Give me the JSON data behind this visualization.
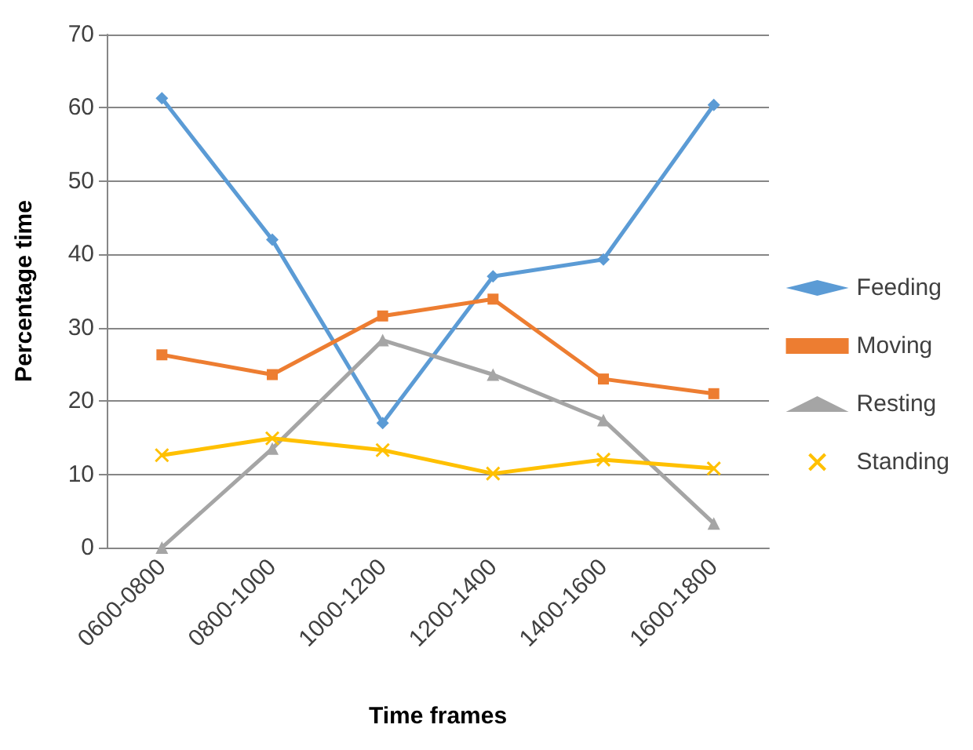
{
  "chart_data": {
    "type": "line",
    "xlabel": "Time frames",
    "ylabel": "Percentage time",
    "categories": [
      "0600-0800",
      "0800-1000",
      "1000-1200",
      "1200-1400",
      "1400-1600",
      "1600-1800"
    ],
    "series": [
      {
        "name": "Feeding",
        "color": "#5b9bd5",
        "marker": "diamond",
        "values": [
          61.3,
          42,
          17,
          37,
          39.3,
          60.4
        ]
      },
      {
        "name": "Moving",
        "color": "#ed7d31",
        "marker": "square",
        "values": [
          26.3,
          23.6,
          31.6,
          33.9,
          23,
          21
        ]
      },
      {
        "name": "Resting",
        "color": "#a5a5a5",
        "marker": "triangle",
        "values": [
          0,
          13.5,
          28.3,
          23.6,
          17.4,
          3.3
        ]
      },
      {
        "name": "Standing",
        "color": "#ffc000",
        "marker": "cross",
        "values": [
          12.6,
          14.9,
          13.3,
          10.1,
          12,
          10.8
        ]
      }
    ],
    "ylim": [
      0,
      70
    ],
    "yticks": [
      0,
      10,
      20,
      30,
      40,
      50,
      60,
      70
    ],
    "grid": "y",
    "legend": "right",
    "line_style": "solid"
  }
}
